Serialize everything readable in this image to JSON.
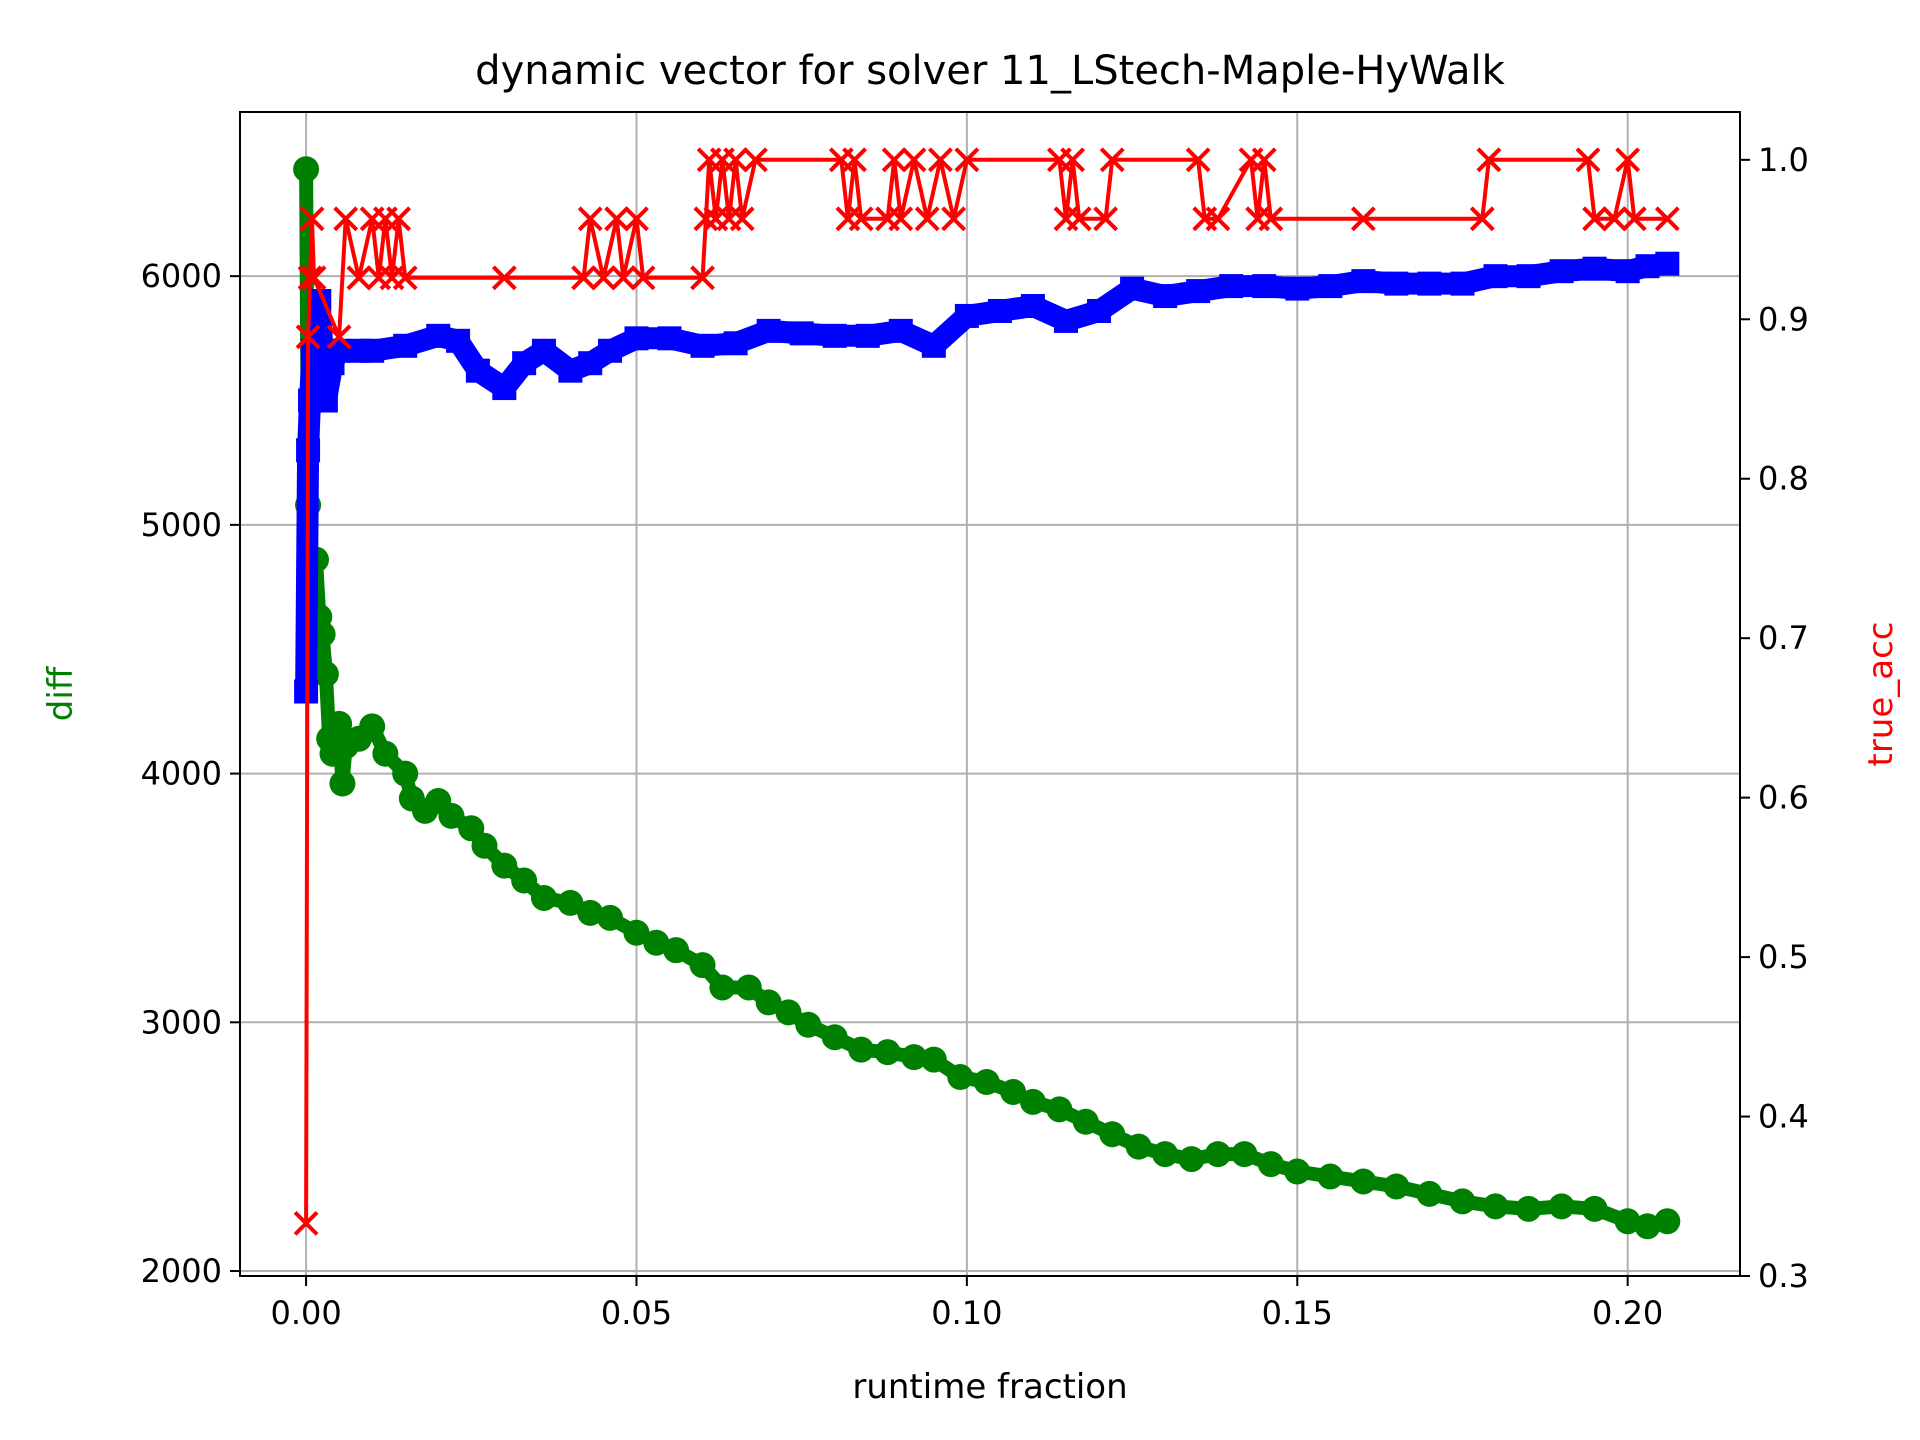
{
  "chart_data": {
    "type": "line",
    "title": "dynamic vector for solver 11_LStech-Maple-HyWalk",
    "xlabel": "runtime fraction",
    "ylabel_left": "diff",
    "ylabel_right": "true_acc",
    "grid": true,
    "xlim": [
      -0.01,
      0.217
    ],
    "ylim_left": [
      1980,
      6660
    ],
    "ylim_right": [
      0.3,
      1.03
    ],
    "x_ticks": [
      {
        "value": 0.0,
        "label": "0.00"
      },
      {
        "value": 0.05,
        "label": "0.05"
      },
      {
        "value": 0.1,
        "label": "0.10"
      },
      {
        "value": 0.15,
        "label": "0.15"
      },
      {
        "value": 0.2,
        "label": "0.20"
      }
    ],
    "y_left_ticks": [
      {
        "value": 2000,
        "label": "2000"
      },
      {
        "value": 3000,
        "label": "3000"
      },
      {
        "value": 4000,
        "label": "4000"
      },
      {
        "value": 5000,
        "label": "5000"
      },
      {
        "value": 6000,
        "label": "6000"
      }
    ],
    "y_right_ticks": [
      {
        "value": 0.3,
        "label": "0.3"
      },
      {
        "value": 0.4,
        "label": "0.4"
      },
      {
        "value": 0.5,
        "label": "0.5"
      },
      {
        "value": 0.6,
        "label": "0.6"
      },
      {
        "value": 0.7,
        "label": "0.7"
      },
      {
        "value": 0.8,
        "label": "0.8"
      },
      {
        "value": 0.9,
        "label": "0.9"
      },
      {
        "value": 1.0,
        "label": "1.0"
      }
    ],
    "series": [
      {
        "color": "#008000",
        "marker": "circle",
        "axis": "left",
        "points": [
          [
            0.0,
            6430
          ],
          [
            0.0003,
            5080
          ],
          [
            0.0005,
            4870
          ],
          [
            0.0008,
            4620
          ],
          [
            0.001,
            4470
          ],
          [
            0.0015,
            4860
          ],
          [
            0.002,
            4630
          ],
          [
            0.0025,
            4560
          ],
          [
            0.003,
            4400
          ],
          [
            0.0035,
            4140
          ],
          [
            0.004,
            4080
          ],
          [
            0.005,
            4200
          ],
          [
            0.0055,
            3960
          ],
          [
            0.006,
            4110
          ],
          [
            0.008,
            4140
          ],
          [
            0.01,
            4190
          ],
          [
            0.012,
            4080
          ],
          [
            0.015,
            4000
          ],
          [
            0.016,
            3900
          ],
          [
            0.018,
            3850
          ],
          [
            0.02,
            3890
          ],
          [
            0.022,
            3830
          ],
          [
            0.025,
            3780
          ],
          [
            0.027,
            3710
          ],
          [
            0.03,
            3630
          ],
          [
            0.033,
            3570
          ],
          [
            0.036,
            3500
          ],
          [
            0.04,
            3480
          ],
          [
            0.043,
            3440
          ],
          [
            0.046,
            3420
          ],
          [
            0.05,
            3360
          ],
          [
            0.053,
            3320
          ],
          [
            0.056,
            3290
          ],
          [
            0.06,
            3230
          ],
          [
            0.063,
            3140
          ],
          [
            0.067,
            3140
          ],
          [
            0.07,
            3080
          ],
          [
            0.073,
            3040
          ],
          [
            0.076,
            2990
          ],
          [
            0.08,
            2940
          ],
          [
            0.084,
            2890
          ],
          [
            0.088,
            2880
          ],
          [
            0.092,
            2860
          ],
          [
            0.095,
            2850
          ],
          [
            0.099,
            2780
          ],
          [
            0.103,
            2760
          ],
          [
            0.107,
            2720
          ],
          [
            0.11,
            2680
          ],
          [
            0.114,
            2650
          ],
          [
            0.118,
            2600
          ],
          [
            0.122,
            2550
          ],
          [
            0.126,
            2500
          ],
          [
            0.13,
            2470
          ],
          [
            0.134,
            2450
          ],
          [
            0.138,
            2470
          ],
          [
            0.142,
            2470
          ],
          [
            0.146,
            2430
          ],
          [
            0.15,
            2400
          ],
          [
            0.155,
            2380
          ],
          [
            0.16,
            2360
          ],
          [
            0.165,
            2340
          ],
          [
            0.17,
            2310
          ],
          [
            0.175,
            2280
          ],
          [
            0.18,
            2260
          ],
          [
            0.185,
            2250
          ],
          [
            0.19,
            2260
          ],
          [
            0.195,
            2250
          ],
          [
            0.2,
            2200
          ],
          [
            0.203,
            2180
          ],
          [
            0.206,
            2200
          ]
        ]
      },
      {
        "color": "#0000ff",
        "marker": "square",
        "axis": "left",
        "points": [
          [
            0.0,
            4330
          ],
          [
            0.0003,
            5300
          ],
          [
            0.0006,
            5500
          ],
          [
            0.001,
            5700
          ],
          [
            0.0015,
            5600
          ],
          [
            0.002,
            5900
          ],
          [
            0.0025,
            5700
          ],
          [
            0.003,
            5500
          ],
          [
            0.004,
            5650
          ],
          [
            0.005,
            5700
          ],
          [
            0.008,
            5700
          ],
          [
            0.01,
            5700
          ],
          [
            0.015,
            5720
          ],
          [
            0.02,
            5760
          ],
          [
            0.023,
            5740
          ],
          [
            0.026,
            5620
          ],
          [
            0.03,
            5550
          ],
          [
            0.033,
            5650
          ],
          [
            0.036,
            5700
          ],
          [
            0.04,
            5620
          ],
          [
            0.043,
            5650
          ],
          [
            0.046,
            5700
          ],
          [
            0.05,
            5750
          ],
          [
            0.055,
            5750
          ],
          [
            0.06,
            5720
          ],
          [
            0.065,
            5730
          ],
          [
            0.07,
            5780
          ],
          [
            0.075,
            5770
          ],
          [
            0.08,
            5760
          ],
          [
            0.085,
            5760
          ],
          [
            0.09,
            5780
          ],
          [
            0.095,
            5720
          ],
          [
            0.1,
            5840
          ],
          [
            0.105,
            5860
          ],
          [
            0.11,
            5880
          ],
          [
            0.115,
            5820
          ],
          [
            0.12,
            5860
          ],
          [
            0.125,
            5950
          ],
          [
            0.13,
            5920
          ],
          [
            0.135,
            5940
          ],
          [
            0.14,
            5960
          ],
          [
            0.145,
            5960
          ],
          [
            0.15,
            5950
          ],
          [
            0.155,
            5960
          ],
          [
            0.16,
            5980
          ],
          [
            0.165,
            5970
          ],
          [
            0.17,
            5970
          ],
          [
            0.175,
            5970
          ],
          [
            0.18,
            6000
          ],
          [
            0.185,
            6000
          ],
          [
            0.19,
            6020
          ],
          [
            0.195,
            6030
          ],
          [
            0.2,
            6020
          ],
          [
            0.203,
            6040
          ],
          [
            0.206,
            6050
          ]
        ]
      },
      {
        "color": "#ff0000",
        "marker": "x",
        "axis": "right",
        "points": [
          [
            0.0,
            0.333
          ],
          [
            0.0003,
            0.889
          ],
          [
            0.0006,
            0.926
          ],
          [
            0.0009,
            0.963
          ],
          [
            0.0012,
            0.926
          ],
          [
            0.005,
            0.889
          ],
          [
            0.006,
            0.963
          ],
          [
            0.008,
            0.926
          ],
          [
            0.01,
            0.963
          ],
          [
            0.011,
            0.926
          ],
          [
            0.012,
            0.963
          ],
          [
            0.013,
            0.926
          ],
          [
            0.014,
            0.963
          ],
          [
            0.015,
            0.926
          ],
          [
            0.03,
            0.926
          ],
          [
            0.042,
            0.926
          ],
          [
            0.043,
            0.963
          ],
          [
            0.045,
            0.926
          ],
          [
            0.047,
            0.963
          ],
          [
            0.048,
            0.926
          ],
          [
            0.05,
            0.963
          ],
          [
            0.051,
            0.926
          ],
          [
            0.06,
            0.926
          ],
          [
            0.0605,
            0.963
          ],
          [
            0.061,
            1.0
          ],
          [
            0.062,
            0.963
          ],
          [
            0.063,
            1.0
          ],
          [
            0.064,
            0.963
          ],
          [
            0.065,
            1.0
          ],
          [
            0.066,
            0.963
          ],
          [
            0.068,
            1.0
          ],
          [
            0.081,
            1.0
          ],
          [
            0.082,
            0.963
          ],
          [
            0.083,
            1.0
          ],
          [
            0.084,
            0.963
          ],
          [
            0.088,
            0.963
          ],
          [
            0.089,
            1.0
          ],
          [
            0.09,
            0.963
          ],
          [
            0.092,
            1.0
          ],
          [
            0.094,
            0.963
          ],
          [
            0.096,
            1.0
          ],
          [
            0.098,
            0.963
          ],
          [
            0.1,
            1.0
          ],
          [
            0.114,
            1.0
          ],
          [
            0.115,
            0.963
          ],
          [
            0.116,
            1.0
          ],
          [
            0.117,
            0.963
          ],
          [
            0.121,
            0.963
          ],
          [
            0.122,
            1.0
          ],
          [
            0.135,
            1.0
          ],
          [
            0.136,
            0.963
          ],
          [
            0.138,
            0.963
          ],
          [
            0.143,
            1.0
          ],
          [
            0.144,
            0.963
          ],
          [
            0.145,
            1.0
          ],
          [
            0.146,
            0.963
          ],
          [
            0.16,
            0.963
          ],
          [
            0.178,
            0.963
          ],
          [
            0.179,
            1.0
          ],
          [
            0.194,
            1.0
          ],
          [
            0.195,
            0.963
          ],
          [
            0.198,
            0.963
          ],
          [
            0.2,
            1.0
          ],
          [
            0.201,
            0.963
          ],
          [
            0.206,
            0.963
          ]
        ]
      }
    ]
  }
}
